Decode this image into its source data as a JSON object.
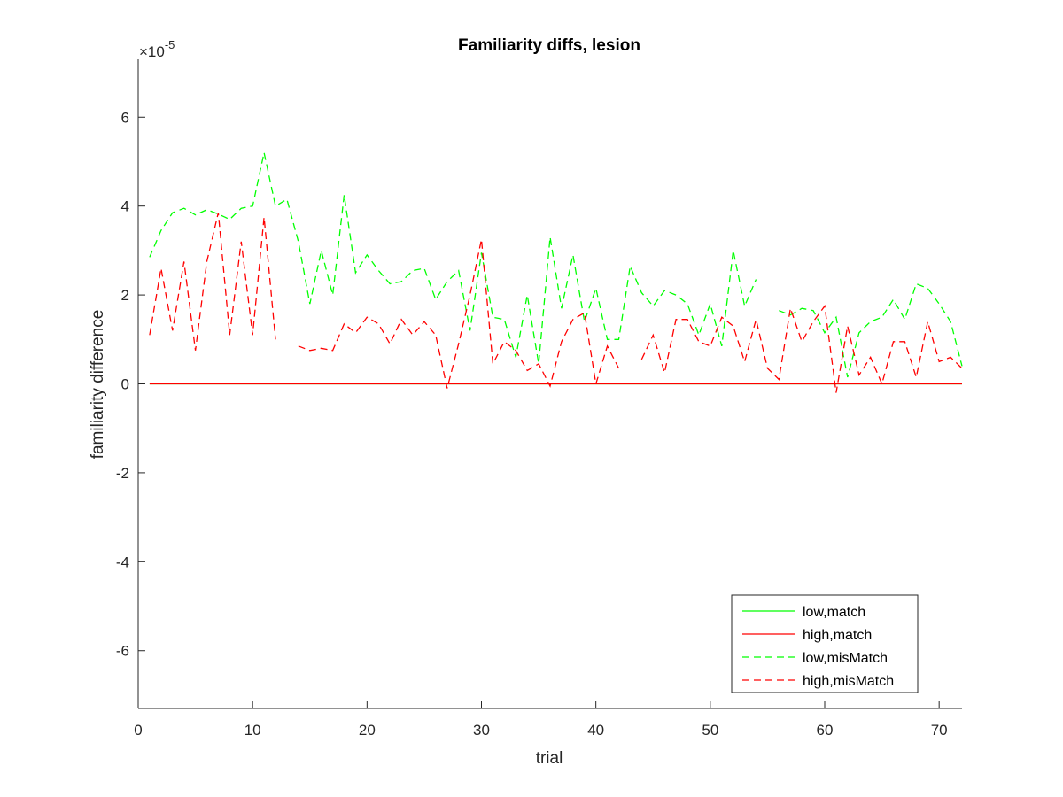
{
  "chart_data": {
    "type": "line",
    "title": "Familiarity diffs, lesion",
    "xlabel": "trial",
    "ylabel": "familiarity difference",
    "xlim": [
      0,
      72
    ],
    "ylim": [
      -7.3,
      7.3
    ],
    "y_exponent_label": "×10",
    "y_exponent_power": "-5",
    "x_ticks": [
      0,
      10,
      20,
      30,
      40,
      50,
      60,
      70
    ],
    "x_tick_labels": [
      "0",
      "10",
      "20",
      "30",
      "40",
      "50",
      "60",
      "70"
    ],
    "y_ticks": [
      -6,
      -4,
      -2,
      0,
      2,
      4,
      6
    ],
    "y_tick_labels": [
      "-6",
      "-4",
      "-2",
      "0",
      "2",
      "4",
      "6"
    ],
    "grid": false,
    "legend_position": "bottom-right",
    "series": [
      {
        "name": "low,match",
        "color": "#00ff00",
        "dash": "solid",
        "x": [
          1,
          72
        ],
        "y": [
          0,
          0
        ]
      },
      {
        "name": "high,match",
        "color": "#ff0000",
        "dash": "solid",
        "x": [
          1,
          72
        ],
        "y": [
          0,
          0
        ]
      },
      {
        "name": "low,misMatch",
        "color": "#00ff00",
        "dash": "dashed",
        "x": [
          1,
          2,
          3,
          4,
          5,
          6,
          7,
          8,
          9,
          10,
          11,
          12,
          13,
          14,
          15,
          16,
          17,
          18,
          19,
          20,
          21,
          22,
          23,
          24,
          25,
          26,
          27,
          28,
          29,
          30,
          31,
          32,
          33,
          34,
          35,
          36,
          37,
          38,
          39,
          40,
          41,
          42,
          43,
          44,
          45,
          46,
          47,
          48,
          49,
          50,
          51,
          52,
          53,
          54,
          55,
          56,
          57,
          58,
          59,
          60,
          61,
          62,
          63,
          64,
          65,
          66,
          67,
          68,
          69,
          70,
          71,
          72
        ],
        "y": [
          2.85,
          3.45,
          3.85,
          3.95,
          3.8,
          3.92,
          3.82,
          3.7,
          3.95,
          4.0,
          5.2,
          4.0,
          4.15,
          3.2,
          1.8,
          3.0,
          2.0,
          4.25,
          2.5,
          2.9,
          2.55,
          2.25,
          2.3,
          2.55,
          2.6,
          1.9,
          2.3,
          2.55,
          1.2,
          2.95,
          1.5,
          1.45,
          0.6,
          2.0,
          0.45,
          3.3,
          1.7,
          2.9,
          1.4,
          2.15,
          1.0,
          1.0,
          2.65,
          2.05,
          1.75,
          2.1,
          2.0,
          1.8,
          1.1,
          1.8,
          0.85,
          3.0,
          1.75,
          2.35,
          null,
          1.65,
          1.55,
          1.7,
          1.65,
          1.15,
          1.5,
          0.15,
          1.15,
          1.4,
          1.5,
          1.9,
          1.45,
          2.25,
          2.15,
          1.8,
          1.4,
          0.4
        ]
      },
      {
        "name": "high,misMatch",
        "color": "#ff0000",
        "dash": "dashed",
        "x": [
          1,
          2,
          3,
          4,
          5,
          6,
          7,
          8,
          9,
          10,
          11,
          12,
          13,
          14,
          15,
          16,
          17,
          18,
          19,
          20,
          21,
          22,
          23,
          24,
          25,
          26,
          27,
          28,
          29,
          30,
          31,
          32,
          33,
          34,
          35,
          36,
          37,
          38,
          39,
          40,
          41,
          42,
          43,
          44,
          45,
          46,
          47,
          48,
          49,
          50,
          51,
          52,
          53,
          54,
          55,
          56,
          57,
          58,
          59,
          60,
          61,
          62,
          63,
          64,
          65,
          66,
          67,
          68,
          69,
          70,
          71,
          72
        ],
        "y": [
          1.1,
          2.6,
          1.2,
          2.75,
          0.75,
          2.75,
          3.85,
          1.1,
          3.2,
          1.1,
          3.75,
          1.0,
          null,
          0.85,
          0.75,
          0.8,
          0.75,
          1.35,
          1.15,
          1.5,
          1.35,
          0.9,
          1.45,
          1.1,
          1.4,
          1.1,
          -0.1,
          0.9,
          2.0,
          3.25,
          0.45,
          0.95,
          0.75,
          0.3,
          0.45,
          -0.05,
          0.95,
          1.45,
          1.6,
          0.0,
          0.85,
          0.35,
          null,
          0.55,
          1.1,
          0.25,
          1.45,
          1.45,
          0.95,
          0.85,
          1.5,
          1.3,
          0.5,
          1.45,
          0.35,
          0.1,
          1.7,
          0.95,
          1.4,
          1.75,
          -0.2,
          1.3,
          0.2,
          0.6,
          0.0,
          0.95,
          0.95,
          0.15,
          1.4,
          0.5,
          0.6,
          0.35
        ]
      }
    ]
  }
}
